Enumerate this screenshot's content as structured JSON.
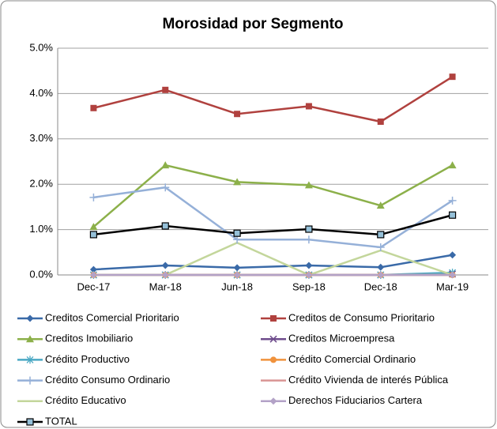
{
  "chart_data": {
    "type": "line",
    "title": "Morosidad por Segmento",
    "categories": [
      "Dec-17",
      "Mar-18",
      "Jun-18",
      "Sep-18",
      "Dec-18",
      "Mar-19"
    ],
    "ylim": [
      0,
      5
    ],
    "yticks": [
      {
        "value": 0,
        "label": "0.0%"
      },
      {
        "value": 1,
        "label": "1.0%"
      },
      {
        "value": 2,
        "label": "2.0%"
      },
      {
        "value": 3,
        "label": "3.0%"
      },
      {
        "value": 4,
        "label": "4.0%"
      },
      {
        "value": 5,
        "label": "5.0%"
      }
    ],
    "grid": true,
    "legend": "bottom",
    "series": [
      {
        "name": "Creditos Comercial Prioritario",
        "color": "#3a6aa8",
        "marker": "diamond",
        "values": [
          0.12,
          0.21,
          0.16,
          0.21,
          0.17,
          0.44
        ]
      },
      {
        "name": "Creditos de Consumo Prioritario",
        "color": "#b0413e",
        "marker": "square",
        "values": [
          3.68,
          4.08,
          3.55,
          3.72,
          3.38,
          4.37
        ]
      },
      {
        "name": "Creditos Imobiliario",
        "color": "#8cb04a",
        "marker": "triangle",
        "values": [
          1.06,
          2.42,
          2.05,
          1.98,
          1.53,
          2.42
        ]
      },
      {
        "name": "Creditos Microempresa",
        "color": "#6e4c8c",
        "marker": "x",
        "values": [
          0,
          0,
          0,
          0,
          0,
          0.02
        ]
      },
      {
        "name": "Crédito Productivo",
        "color": "#4aa8c4",
        "marker": "star",
        "values": [
          0,
          0,
          0,
          0,
          0,
          0.05
        ]
      },
      {
        "name": "Crédito Comercial Ordinario",
        "color": "#f0923c",
        "marker": "circle",
        "values": [
          0,
          0,
          0,
          0,
          0,
          0
        ]
      },
      {
        "name": "Crédito Consumo Ordinario",
        "color": "#95b0d8",
        "marker": "plus",
        "values": [
          1.71,
          1.93,
          0.78,
          0.78,
          0.61,
          1.64
        ]
      },
      {
        "name": "Crédito Vivienda de interés Pública",
        "color": "#d99594",
        "marker": "none",
        "values": [
          0,
          0,
          0,
          0,
          0,
          0
        ]
      },
      {
        "name": "Crédito Educativo",
        "color": "#c3d69b",
        "marker": "none",
        "values": [
          0,
          0,
          0.71,
          0,
          0.54,
          0
        ]
      },
      {
        "name": "Derechos Fiduciarios Cartera",
        "color": "#b3a2c7",
        "marker": "diamond",
        "values": [
          0,
          0,
          0,
          0,
          0,
          0
        ]
      },
      {
        "name": "TOTAL",
        "color": "#000000",
        "marker": "square",
        "marker_color": "#95c0d8",
        "values": [
          0.89,
          1.08,
          0.92,
          1.01,
          0.89,
          1.32
        ]
      }
    ]
  }
}
